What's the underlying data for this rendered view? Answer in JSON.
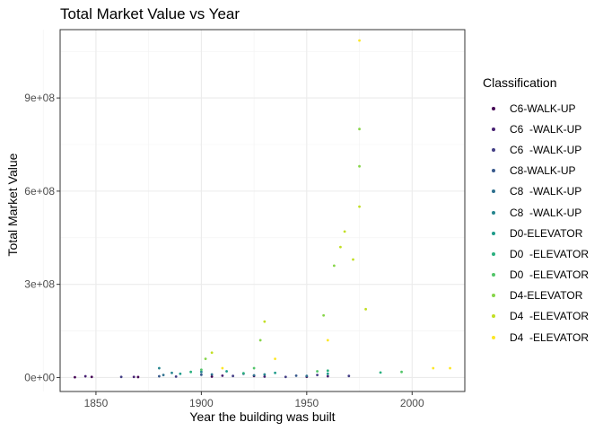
{
  "chart_data": {
    "type": "scatter",
    "title": "Total Market Value vs Year",
    "xlabel": "Year the building was built",
    "ylabel": "Total Market Value",
    "xlim": [
      1833,
      2025
    ],
    "ylim": [
      -45000000,
      1120000000
    ],
    "x_ticks": [
      1850,
      1900,
      1950,
      2000
    ],
    "y_ticks": [
      0,
      300000000,
      600000000,
      900000000
    ],
    "y_tick_labels": [
      "0e+00",
      "3e+08",
      "6e+08",
      "9e+08"
    ],
    "grid": true,
    "legend_position": "right",
    "legend_title": "Classification",
    "series": [
      {
        "name": "C6-WALK-UP",
        "color": "#440154",
        "points": [
          [
            1840,
            1000000
          ],
          [
            1848,
            2000000
          ],
          [
            1870,
            1500000
          ],
          [
            1905,
            3000000
          ],
          [
            1925,
            5000000
          ],
          [
            1950,
            2500000
          ]
        ]
      },
      {
        "name": "C6  -WALK-UP",
        "color": "#482173",
        "points": [
          [
            1845,
            4000000
          ],
          [
            1868,
            2000000
          ],
          [
            1910,
            6000000
          ],
          [
            1930,
            3000000
          ],
          [
            1960,
            4000000
          ]
        ]
      },
      {
        "name": "C6  -WALK-UP",
        "color": "#433e85",
        "points": [
          [
            1862,
            2000000
          ],
          [
            1888,
            3000000
          ],
          [
            1915,
            5000000
          ],
          [
            1940,
            2000000
          ],
          [
            1955,
            8000000
          ],
          [
            1970,
            5000000
          ]
        ]
      },
      {
        "name": "C8-WALK-UP",
        "color": "#38598c",
        "points": [
          [
            1880,
            4000000
          ],
          [
            1900,
            9000000
          ],
          [
            1920,
            12000000
          ],
          [
            1945,
            6000000
          ]
        ]
      },
      {
        "name": "C8  -WALK-UP",
        "color": "#2d708e",
        "points": [
          [
            1882,
            8000000
          ],
          [
            1905,
            10000000
          ],
          [
            1925,
            7000000
          ],
          [
            1950,
            5000000
          ]
        ]
      },
      {
        "name": "C8  -WALK-UP",
        "color": "#25858e",
        "points": [
          [
            1880,
            30000000
          ],
          [
            1886,
            15000000
          ],
          [
            1900,
            18000000
          ],
          [
            1930,
            10000000
          ]
        ]
      },
      {
        "name": "D0-ELEVATOR",
        "color": "#1e9b8a",
        "points": [
          [
            1890,
            12000000
          ],
          [
            1912,
            20000000
          ],
          [
            1935,
            15000000
          ],
          [
            1960,
            12000000
          ]
        ]
      },
      {
        "name": "D0  -ELEVATOR",
        "color": "#2ab07f",
        "points": [
          [
            1895,
            18000000
          ],
          [
            1920,
            14000000
          ],
          [
            1960,
            22000000
          ],
          [
            1985,
            16000000
          ]
        ]
      },
      {
        "name": "D0  -ELEVATOR",
        "color": "#52c569",
        "points": [
          [
            1900,
            25000000
          ],
          [
            1925,
            30000000
          ],
          [
            1955,
            20000000
          ],
          [
            1995,
            18000000
          ]
        ]
      },
      {
        "name": "D4-ELEVATOR",
        "color": "#86d549",
        "points": [
          [
            1902,
            60000000
          ],
          [
            1928,
            120000000
          ],
          [
            1958,
            200000000
          ],
          [
            1963,
            360000000
          ],
          [
            1975,
            800000000
          ],
          [
            1975,
            680000000
          ]
        ]
      },
      {
        "name": "D4  -ELEVATOR",
        "color": "#c2df23",
        "points": [
          [
            1905,
            80000000
          ],
          [
            1930,
            180000000
          ],
          [
            1966,
            420000000
          ],
          [
            1968,
            470000000
          ],
          [
            1972,
            380000000
          ],
          [
            1975,
            550000000
          ],
          [
            1978,
            220000000
          ]
        ]
      },
      {
        "name": "D4  -ELEVATOR",
        "color": "#fde725",
        "points": [
          [
            1910,
            30000000
          ],
          [
            1935,
            60000000
          ],
          [
            1960,
            120000000
          ],
          [
            1975,
            1085000000
          ],
          [
            2010,
            30000000
          ],
          [
            2018,
            30000000
          ]
        ]
      }
    ]
  }
}
